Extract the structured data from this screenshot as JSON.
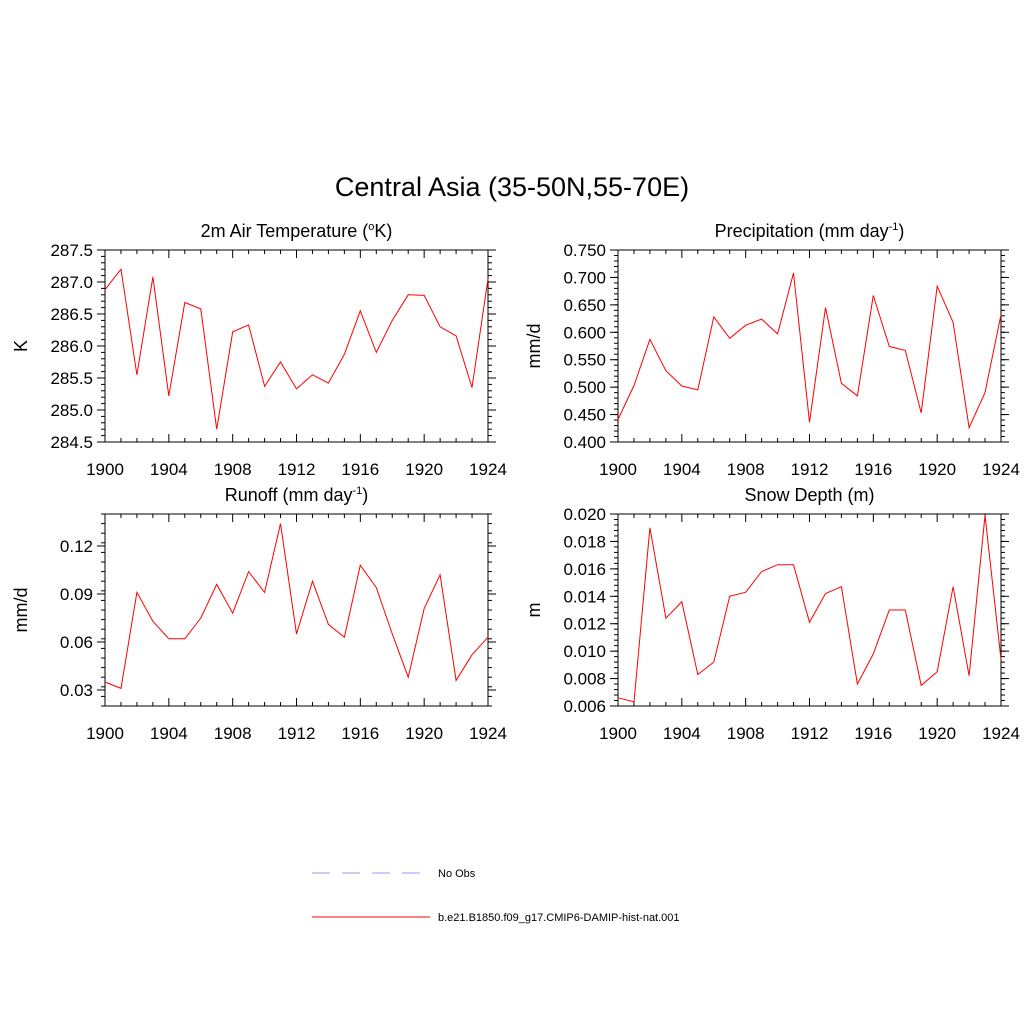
{
  "title": "Central Asia (35-50N,55-70E)",
  "colors": {
    "model": "#ff0000",
    "obs": "#9a9aff",
    "axis": "#000000"
  },
  "legend": [
    {
      "label": "No Obs",
      "style": "dashed",
      "color": "#9a9aff"
    },
    {
      "label": "b.e21.B1850.f09_g17.CMIP6-DAMIP-hist-nat.001",
      "style": "solid",
      "color": "#ff0000"
    }
  ],
  "chart_data": [
    {
      "type": "line",
      "title": "2m Air Temperature (",
      "title_sup": "o",
      "title_after": "K)",
      "ylabel": "K",
      "xlim": [
        1900,
        1924
      ],
      "ylim": [
        284.5,
        287.5
      ],
      "xticks": [
        1900,
        1904,
        1908,
        1912,
        1916,
        1920,
        1924
      ],
      "yticks": [
        "284.5",
        "285.0",
        "285.5",
        "286.0",
        "286.5",
        "287.0",
        "287.5"
      ],
      "x": [
        1900,
        1901,
        1902,
        1903,
        1904,
        1905,
        1906,
        1907,
        1908,
        1909,
        1910,
        1911,
        1912,
        1913,
        1914,
        1915,
        1916,
        1917,
        1918,
        1919,
        1920,
        1921,
        1922,
        1923,
        1924
      ],
      "series": [
        {
          "name": "b.e21.B1850.f09_g17.CMIP6-DAMIP-hist-nat.001",
          "values": [
            286.88,
            287.2,
            285.55,
            287.08,
            285.22,
            286.68,
            286.58,
            284.7,
            286.22,
            286.33,
            285.37,
            285.75,
            285.33,
            285.55,
            285.42,
            285.87,
            286.55,
            285.9,
            286.4,
            286.8,
            286.79,
            286.3,
            286.16,
            285.35,
            287.05
          ]
        }
      ]
    },
    {
      "type": "line",
      "title": "Precipitation (mm day",
      "title_sup": "-1",
      "title_after": ")",
      "ylabel": "mm/d",
      "xlim": [
        1900,
        1924
      ],
      "ylim": [
        0.4,
        0.75
      ],
      "xticks": [
        1900,
        1904,
        1908,
        1912,
        1916,
        1920,
        1924
      ],
      "yticks": [
        "0.400",
        "0.450",
        "0.500",
        "0.550",
        "0.600",
        "0.650",
        "0.700",
        "0.750"
      ],
      "x": [
        1900,
        1901,
        1902,
        1903,
        1904,
        1905,
        1906,
        1907,
        1908,
        1909,
        1910,
        1911,
        1912,
        1913,
        1914,
        1915,
        1916,
        1917,
        1918,
        1919,
        1920,
        1921,
        1922,
        1923,
        1924
      ],
      "series": [
        {
          "name": "b.e21.B1850.f09_g17.CMIP6-DAMIP-hist-nat.001",
          "values": [
            0.441,
            0.503,
            0.587,
            0.53,
            0.502,
            0.495,
            0.628,
            0.589,
            0.613,
            0.624,
            0.597,
            0.708,
            0.436,
            0.645,
            0.507,
            0.484,
            0.667,
            0.574,
            0.567,
            0.453,
            0.684,
            0.618,
            0.426,
            0.49,
            0.632
          ]
        }
      ]
    },
    {
      "type": "line",
      "title": "Runoff (mm day",
      "title_sup": "-1",
      "title_after": ")",
      "ylabel": "mm/d",
      "xlim": [
        1900,
        1924
      ],
      "ylim": [
        0.02,
        0.14
      ],
      "xticks": [
        1900,
        1904,
        1908,
        1912,
        1916,
        1920,
        1924
      ],
      "yticks": [
        "0.03",
        "0.06",
        "0.09",
        "0.12"
      ],
      "ytick_values": [
        0.03,
        0.06,
        0.09,
        0.12
      ],
      "x": [
        1900,
        1901,
        1902,
        1903,
        1904,
        1905,
        1906,
        1907,
        1908,
        1909,
        1910,
        1911,
        1912,
        1913,
        1914,
        1915,
        1916,
        1917,
        1918,
        1919,
        1920,
        1921,
        1922,
        1923,
        1924
      ],
      "series": [
        {
          "name": "b.e21.B1850.f09_g17.CMIP6-DAMIP-hist-nat.001",
          "values": [
            0.035,
            0.031,
            0.091,
            0.073,
            0.062,
            0.062,
            0.075,
            0.096,
            0.078,
            0.104,
            0.091,
            0.134,
            0.065,
            0.098,
            0.071,
            0.063,
            0.108,
            0.094,
            0.065,
            0.038,
            0.081,
            0.102,
            0.036,
            0.052,
            0.063
          ]
        }
      ]
    },
    {
      "type": "line",
      "title": "Snow Depth (m)",
      "title_sup": "",
      "title_after": "",
      "ylabel": "m",
      "xlim": [
        1900,
        1924
      ],
      "ylim": [
        0.006,
        0.02
      ],
      "xticks": [
        1900,
        1904,
        1908,
        1912,
        1916,
        1920,
        1924
      ],
      "yticks": [
        "0.006",
        "0.008",
        "0.010",
        "0.012",
        "0.014",
        "0.016",
        "0.018",
        "0.020"
      ],
      "x": [
        1900,
        1901,
        1902,
        1903,
        1904,
        1905,
        1906,
        1907,
        1908,
        1909,
        1910,
        1911,
        1912,
        1913,
        1914,
        1915,
        1916,
        1917,
        1918,
        1919,
        1920,
        1921,
        1922,
        1923,
        1924
      ],
      "series": [
        {
          "name": "b.e21.B1850.f09_g17.CMIP6-DAMIP-hist-nat.001",
          "values": [
            0.0066,
            0.0063,
            0.019,
            0.0124,
            0.0136,
            0.0083,
            0.0092,
            0.014,
            0.0143,
            0.0158,
            0.0163,
            0.0163,
            0.0121,
            0.0142,
            0.0147,
            0.0076,
            0.0098,
            0.013,
            0.013,
            0.0075,
            0.0085,
            0.0147,
            0.0082,
            0.0199,
            0.0094
          ]
        }
      ]
    }
  ]
}
